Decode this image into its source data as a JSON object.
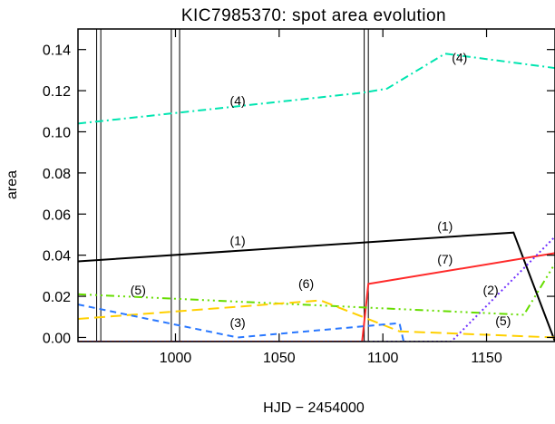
{
  "chart_data": {
    "type": "line",
    "title": "KIC7985370: spot area evolution",
    "xlabel": "HJD − 2454000",
    "ylabel": "area",
    "xlim": [
      953,
      1183
    ],
    "ylim": [
      -0.002,
      0.15
    ],
    "xticks": [
      {
        "value": 1000,
        "label": "1000"
      },
      {
        "value": 1050,
        "label": "1050"
      },
      {
        "value": 1100,
        "label": "1100"
      },
      {
        "value": 1150,
        "label": "1150"
      }
    ],
    "yticks": [
      {
        "value": 0.0,
        "label": "0.00"
      },
      {
        "value": 0.02,
        "label": "0.02"
      },
      {
        "value": 0.04,
        "label": "0.04"
      },
      {
        "value": 0.06,
        "label": "0.06"
      },
      {
        "value": 0.08,
        "label": "0.08"
      },
      {
        "value": 0.1,
        "label": "0.10"
      },
      {
        "value": 0.12,
        "label": "0.12"
      },
      {
        "value": 0.14,
        "label": "0.14"
      }
    ],
    "vertical_lines": [
      962,
      964,
      998,
      1002,
      1091,
      1093
    ],
    "grid": false,
    "legend": "none",
    "series": [
      {
        "color": "#000000",
        "dash": "",
        "x": [
          953,
          1163,
          1183
        ],
        "y": [
          0.037,
          0.051,
          -0.002
        ]
      },
      {
        "color": "#00e5b0",
        "dash": "9 4 2 4",
        "x": [
          953,
          1090,
          1102,
          1130,
          1183
        ],
        "y": [
          0.104,
          0.119,
          0.121,
          0.138,
          0.131
        ]
      },
      {
        "color": "#ff2a2a",
        "dash": "",
        "x": [
          953,
          1090,
          1093,
          1183
        ],
        "y": [
          -0.002,
          -0.002,
          0.026,
          0.041
        ]
      },
      {
        "color": "#7030ff",
        "dash": "2 3",
        "x": [
          953,
          1133,
          1183
        ],
        "y": [
          -0.002,
          -0.002,
          0.049
        ]
      },
      {
        "color": "#66dd00",
        "dash": "9 4 2 4 2 4 2 4",
        "x": [
          953,
          1168,
          1183
        ],
        "y": [
          0.021,
          0.011,
          0.036
        ]
      },
      {
        "color": "#ffd000",
        "dash": "12 6",
        "x": [
          953,
          1070,
          1108,
          1183
        ],
        "y": [
          0.009,
          0.018,
          0.003,
          0.0
        ]
      },
      {
        "color": "#2a78ff",
        "dash": "7 5",
        "x": [
          953,
          1030,
          1108,
          1110
        ],
        "y": [
          0.016,
          0.0,
          0.007,
          -0.002
        ]
      }
    ],
    "annotations": [
      {
        "text": "(4)",
        "x": 1030,
        "y": 0.113
      },
      {
        "text": "(4)",
        "x": 1137,
        "y": 0.134
      },
      {
        "text": "(1)",
        "x": 1030,
        "y": 0.045
      },
      {
        "text": "(1)",
        "x": 1130,
        "y": 0.052
      },
      {
        "text": "(7)",
        "x": 1130,
        "y": 0.036
      },
      {
        "text": "(6)",
        "x": 1063,
        "y": 0.024
      },
      {
        "text": "(5)",
        "x": 982,
        "y": 0.021
      },
      {
        "text": "(2)",
        "x": 1152,
        "y": 0.021
      },
      {
        "text": "(3)",
        "x": 1030,
        "y": 0.005
      },
      {
        "text": "(5)",
        "x": 1158,
        "y": 0.006
      }
    ]
  }
}
